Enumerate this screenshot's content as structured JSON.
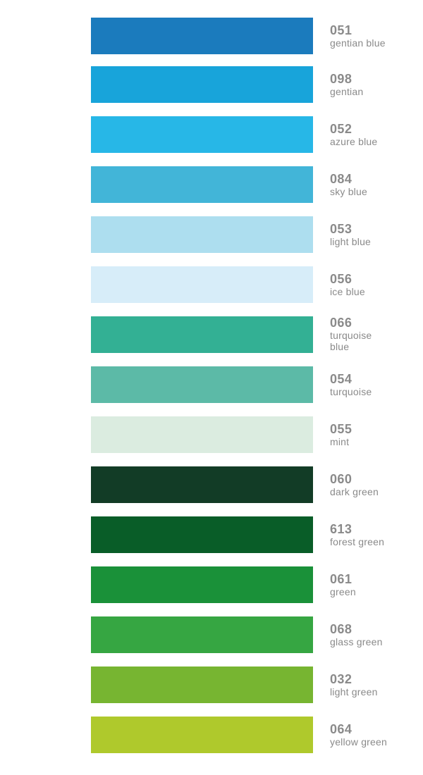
{
  "swatches": [
    {
      "code": "051",
      "name": "gentian blue",
      "color": "#1b7bbd"
    },
    {
      "code": "098",
      "name": "gentian",
      "color": "#18a4da"
    },
    {
      "code": "052",
      "name": "azure blue",
      "color": "#27b7e7"
    },
    {
      "code": "084",
      "name": "sky blue",
      "color": "#42b5d8"
    },
    {
      "code": "053",
      "name": "light blue",
      "color": "#addeef"
    },
    {
      "code": "056",
      "name": "ice blue",
      "color": "#d7edf9"
    },
    {
      "code": "066",
      "name": "turquoise blue",
      "color": "#33b094"
    },
    {
      "code": "054",
      "name": "turquoise",
      "color": "#5cbaa7"
    },
    {
      "code": "055",
      "name": "mint",
      "color": "#dbece0"
    },
    {
      "code": "060",
      "name": "dark green",
      "color": "#123c26"
    },
    {
      "code": "613",
      "name": "forest green",
      "color": "#095d28"
    },
    {
      "code": "061",
      "name": "green",
      "color": "#1a9139"
    },
    {
      "code": "068",
      "name": "glass green",
      "color": "#36a642"
    },
    {
      "code": "032",
      "name": "light green",
      "color": "#77b531"
    },
    {
      "code": "064",
      "name": "yellow green",
      "color": "#afc92c"
    }
  ]
}
